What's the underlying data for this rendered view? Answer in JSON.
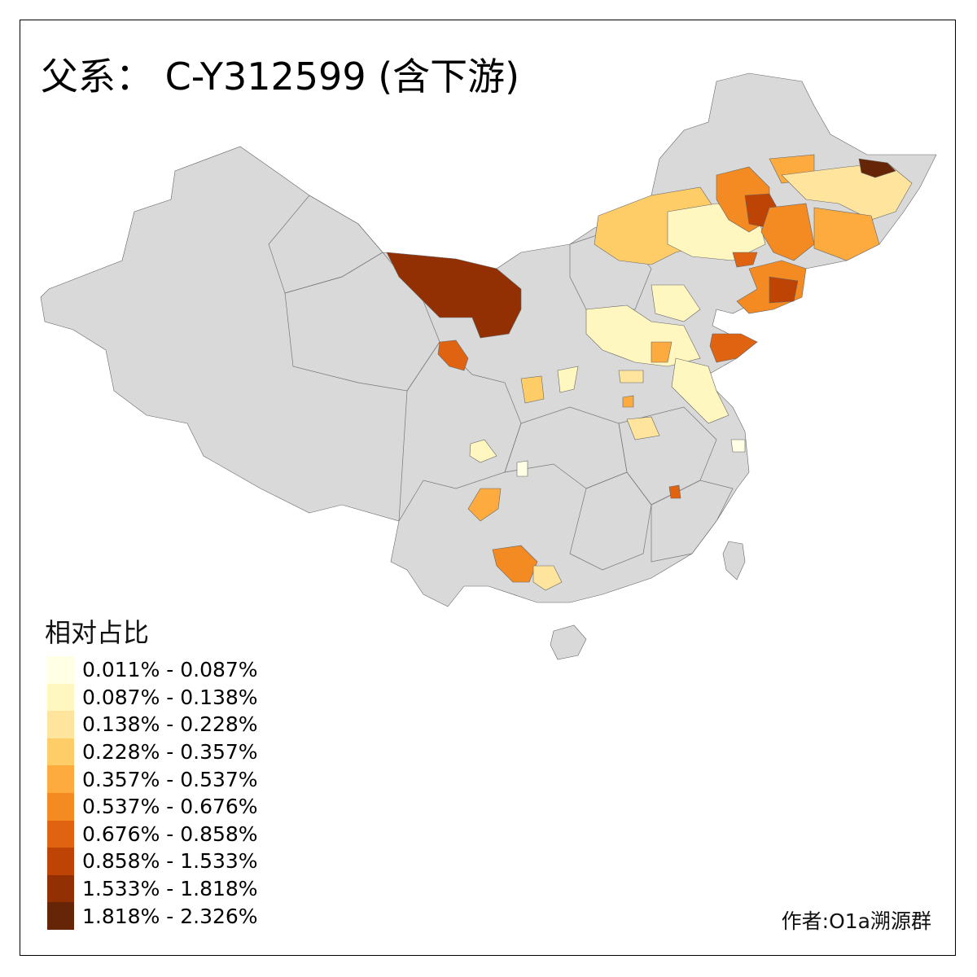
{
  "title": "父系： C-Y312599 (含下游)",
  "legend": {
    "title": "相对占比",
    "classes": [
      {
        "label": "0.011% - 0.087%",
        "color": "#FFFFE5"
      },
      {
        "label": "0.087% - 0.138%",
        "color": "#FFF6C0"
      },
      {
        "label": "0.138% - 0.228%",
        "color": "#FEE49C"
      },
      {
        "label": "0.228% - 0.357%",
        "color": "#FECD68"
      },
      {
        "label": "0.357% - 0.537%",
        "color": "#FDAB3E"
      },
      {
        "label": "0.537% - 0.676%",
        "color": "#F38A22"
      },
      {
        "label": "0.676% - 0.858%",
        "color": "#DF6311"
      },
      {
        "label": "0.858% - 1.533%",
        "color": "#BE4405"
      },
      {
        "label": "1.533% - 1.818%",
        "color": "#923004"
      },
      {
        "label": "1.818% - 2.326%",
        "color": "#662506"
      }
    ]
  },
  "no_data_color": "#D9D9D9",
  "credit": "作者:O1a溯源群"
}
